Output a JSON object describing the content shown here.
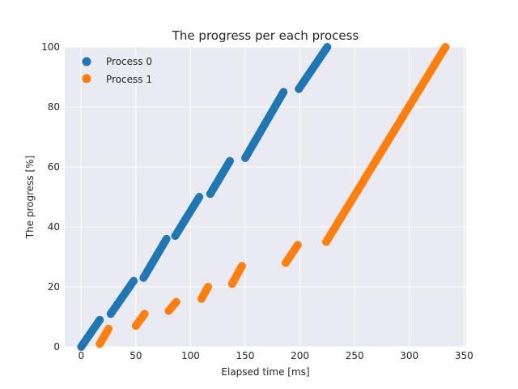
{
  "chart_data": {
    "type": "scatter",
    "title": "The progress per each process",
    "xlabel": "Elapsed time [ms]",
    "ylabel": "The progress [%]",
    "xlim": [
      -15,
      352
    ],
    "ylim": [
      0,
      100
    ],
    "xticks": [
      0,
      50,
      100,
      150,
      200,
      250,
      300,
      350
    ],
    "yticks": [
      0,
      20,
      40,
      60,
      80,
      100
    ],
    "grid": true,
    "legend": "top-left",
    "background": "#eaeaf2",
    "series": [
      {
        "name": "Process 0",
        "color": "#1f77b4",
        "segments": [
          {
            "x": [
              0,
              17
            ],
            "y": [
              0,
              9
            ]
          },
          {
            "x": [
              27,
              48
            ],
            "y": [
              11,
              22
            ]
          },
          {
            "x": [
              57,
              78
            ],
            "y": [
              23,
              36
            ]
          },
          {
            "x": [
              86,
              108
            ],
            "y": [
              37,
              50
            ]
          },
          {
            "x": [
              118,
              136
            ],
            "y": [
              51,
              62
            ]
          },
          {
            "x": [
              150,
              185
            ],
            "y": [
              63,
              85
            ]
          },
          {
            "x": [
              199,
              225
            ],
            "y": [
              86,
              100
            ]
          }
        ]
      },
      {
        "name": "Process 1",
        "color": "#ff7f0e",
        "segments": [
          {
            "x": [
              17,
              25
            ],
            "y": [
              1,
              6
            ]
          },
          {
            "x": [
              50,
              58
            ],
            "y": [
              7,
              11
            ]
          },
          {
            "x": [
              80,
              87
            ],
            "y": [
              12,
              15
            ]
          },
          {
            "x": [
              110,
              116
            ],
            "y": [
              16,
              20
            ]
          },
          {
            "x": [
              138,
              147
            ],
            "y": [
              21,
              27
            ]
          },
          {
            "x": [
              187,
              198
            ],
            "y": [
              28,
              34
            ]
          },
          {
            "x": [
              224,
              333
            ],
            "y": [
              35,
              100
            ]
          }
        ]
      }
    ]
  }
}
